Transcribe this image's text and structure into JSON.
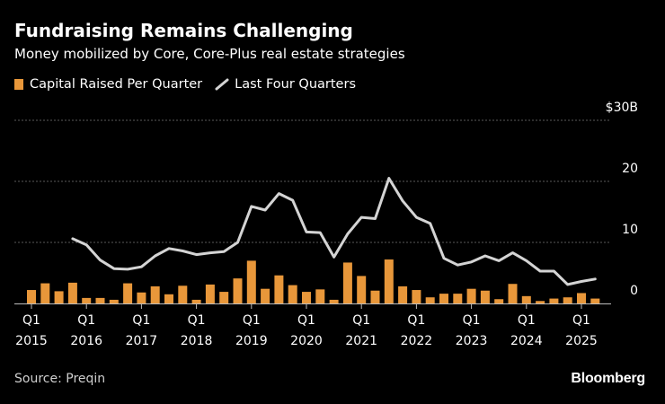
{
  "header": {
    "title": "Fundraising Remains Challenging",
    "subtitle": "Money mobilized by Core, Core-Plus real estate strategies"
  },
  "legend": {
    "bar_label": "Capital Raised Per Quarter",
    "line_label": "Last Four Quarters"
  },
  "footer": {
    "source": "Source: Preqin",
    "brand": "Bloomberg"
  },
  "colors": {
    "bar": "#e8973a",
    "line": "#d4d4d4",
    "grid": "#5a5a5a",
    "background": "#000000"
  },
  "chart_data": {
    "type": "bar",
    "x_labels": [
      {
        "q": "Q1",
        "year": "2015"
      },
      {
        "q": "Q1",
        "year": "2016"
      },
      {
        "q": "Q1",
        "year": "2017"
      },
      {
        "q": "Q1",
        "year": "2018"
      },
      {
        "q": "Q1",
        "year": "2019"
      },
      {
        "q": "Q1",
        "year": "2020"
      },
      {
        "q": "Q1",
        "year": "2021"
      },
      {
        "q": "Q1",
        "year": "2022"
      },
      {
        "q": "Q1",
        "year": "2023"
      },
      {
        "q": "Q1",
        "year": "2024"
      },
      {
        "q": "Q1",
        "year": "2025"
      }
    ],
    "y_ticks": [
      {
        "value": 0,
        "label": "0"
      },
      {
        "value": 10,
        "label": "10"
      },
      {
        "value": 20,
        "label": "20"
      },
      {
        "value": 30,
        "label": "$30B"
      }
    ],
    "ylim": [
      0,
      30
    ],
    "first_quarter": "2015-Q1",
    "series": [
      {
        "name": "Capital Raised Per Quarter",
        "type": "bar",
        "values": [
          2.2,
          3.3,
          2.0,
          3.4,
          0.9,
          0.9,
          0.6,
          3.3,
          1.8,
          2.8,
          1.5,
          2.9,
          0.6,
          3.1,
          1.9,
          4.1,
          7.0,
          2.4,
          4.6,
          3.0,
          1.9,
          2.3,
          0.6,
          6.7,
          4.5,
          2.1,
          7.2,
          2.8,
          2.2,
          1.0,
          1.6,
          1.6,
          2.4,
          2.1,
          0.7,
          3.2,
          1.2,
          0.4,
          0.8,
          1.0,
          1.7,
          0.8
        ]
      },
      {
        "name": "Last Four Quarters",
        "type": "line",
        "start_index": 3,
        "values": [
          10.6,
          9.6,
          7.1,
          5.7,
          5.6,
          6.0,
          7.8,
          9.0,
          8.6,
          8.0,
          8.3,
          8.5,
          10.0,
          15.9,
          15.3,
          18.0,
          16.9,
          11.7,
          11.6,
          7.6,
          11.4,
          14.1,
          13.9,
          20.5,
          16.8,
          14.1,
          13.1,
          7.4,
          6.3,
          6.8,
          7.8,
          7.0,
          8.3,
          7.0,
          5.3,
          5.3,
          3.1,
          3.6,
          4.0
        ]
      }
    ]
  }
}
